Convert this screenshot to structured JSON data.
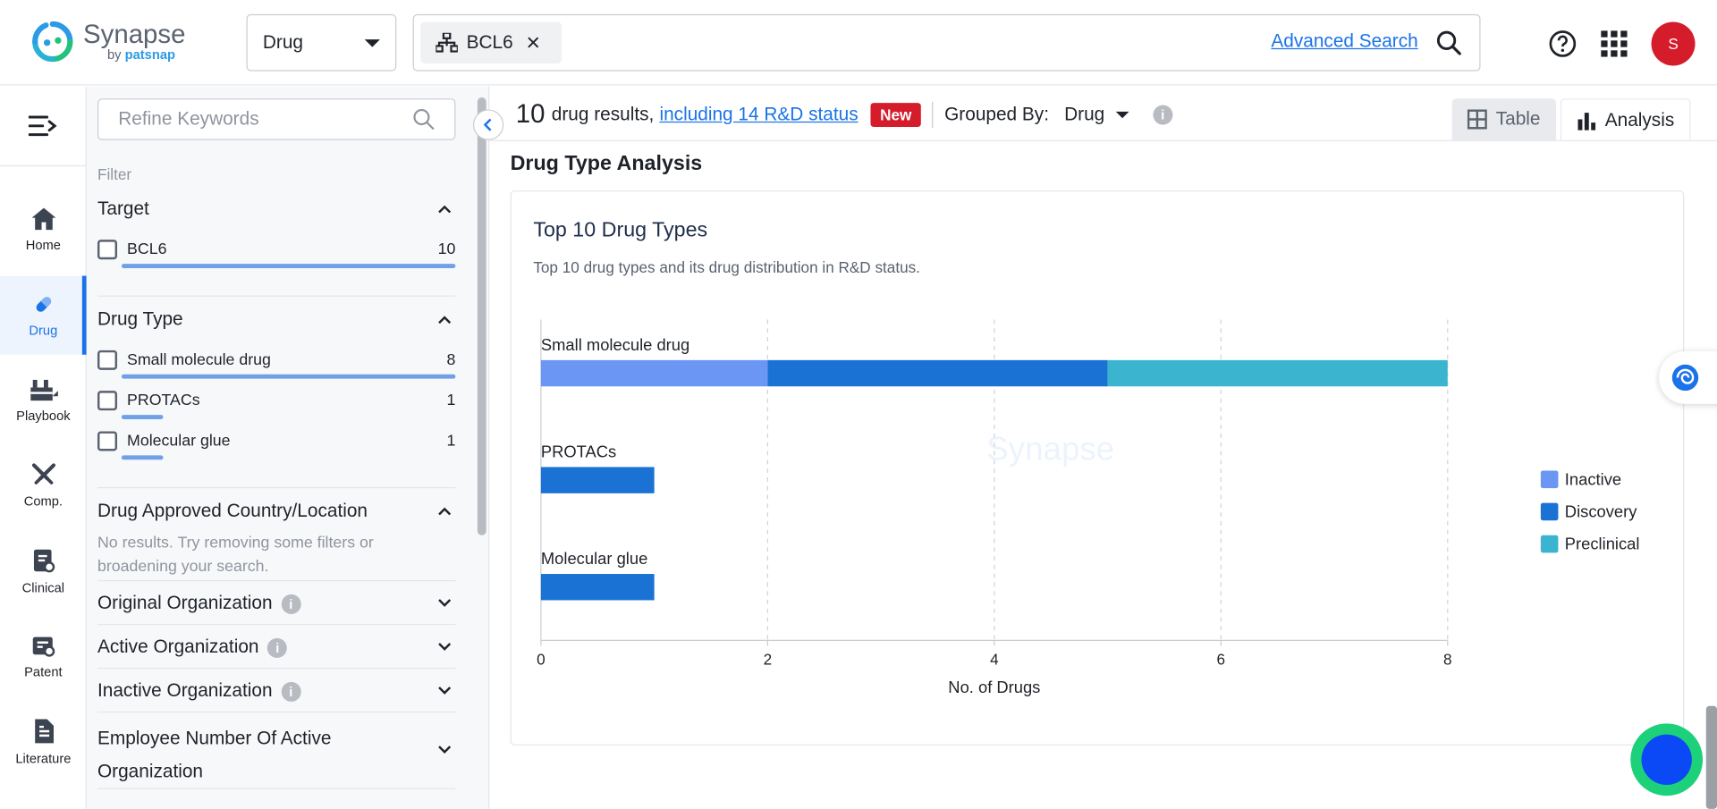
{
  "header": {
    "logo_title": "Synapse",
    "logo_by": "by",
    "logo_brand": "patsnap",
    "type_select": "Drug",
    "chip_label": "BCL6",
    "advanced_search": "Advanced Search",
    "avatar_letter": "S"
  },
  "nav": {
    "items": [
      {
        "label": "Home",
        "icon": "home-icon"
      },
      {
        "label": "Drug",
        "icon": "pill-icon"
      },
      {
        "label": "Playbook",
        "icon": "toolbox-icon"
      },
      {
        "label": "Comp.",
        "icon": "swords-icon"
      },
      {
        "label": "Clinical",
        "icon": "clipboard-icon"
      },
      {
        "label": "Patent",
        "icon": "patent-icon"
      },
      {
        "label": "Literature",
        "icon": "document-icon"
      }
    ],
    "active": "Drug"
  },
  "filters": {
    "refine_placeholder": "Refine Keywords",
    "caption": "Filter",
    "target": {
      "title": "Target",
      "items": [
        {
          "label": "BCL6",
          "count": "10",
          "fraction": 1.0
        }
      ]
    },
    "drug_type": {
      "title": "Drug Type",
      "items": [
        {
          "label": "Small molecule drug",
          "count": "8",
          "fraction": 1.0
        },
        {
          "label": "PROTACs",
          "count": "1",
          "fraction": 0.125
        },
        {
          "label": "Molecular glue",
          "count": "1",
          "fraction": 0.125
        }
      ]
    },
    "approved_country": {
      "title": "Drug Approved Country/Location",
      "no_results": "No results. Try removing some filters or broadening your search."
    },
    "original_org": "Original Organization",
    "active_org": "Active Organization",
    "inactive_org": "Inactive Organization",
    "employee_number": "Employee Number Of Active Organization"
  },
  "results": {
    "count": "10",
    "count_text": "drug results,",
    "rd_link": "including 14 R&D status",
    "new_badge": "New",
    "grouped_by_label": "Grouped By:",
    "grouped_by_value": "Drug"
  },
  "tabs": {
    "table": "Table",
    "analysis": "Analysis",
    "active": "Analysis"
  },
  "section_title": "Drug Type Analysis",
  "card": {
    "title": "Top 10 Drug Types",
    "subtitle": "Top 10 drug types and its drug distribution in R&D status."
  },
  "colors": {
    "Inactive": "#6c96f3",
    "Discovery": "#1a73d4",
    "Preclinical": "#3bb5cf",
    "accent": "#1a73e8"
  },
  "chart_data": {
    "type": "bar",
    "orientation": "horizontal",
    "stacked": true,
    "categories": [
      "Small molecule drug",
      "PROTACs",
      "Molecular glue"
    ],
    "series": [
      {
        "name": "Inactive",
        "values": [
          2,
          0,
          0
        ]
      },
      {
        "name": "Discovery",
        "values": [
          3,
          1,
          1
        ]
      },
      {
        "name": "Preclinical",
        "values": [
          3,
          0,
          0
        ]
      }
    ],
    "xlabel": "No. of Drugs",
    "xlim": [
      0,
      8
    ],
    "xticks": [
      "0",
      "2",
      "4",
      "6",
      "8"
    ],
    "grid": "vertical dashed",
    "legend": "right",
    "watermark": "Synapse by patsnap"
  }
}
